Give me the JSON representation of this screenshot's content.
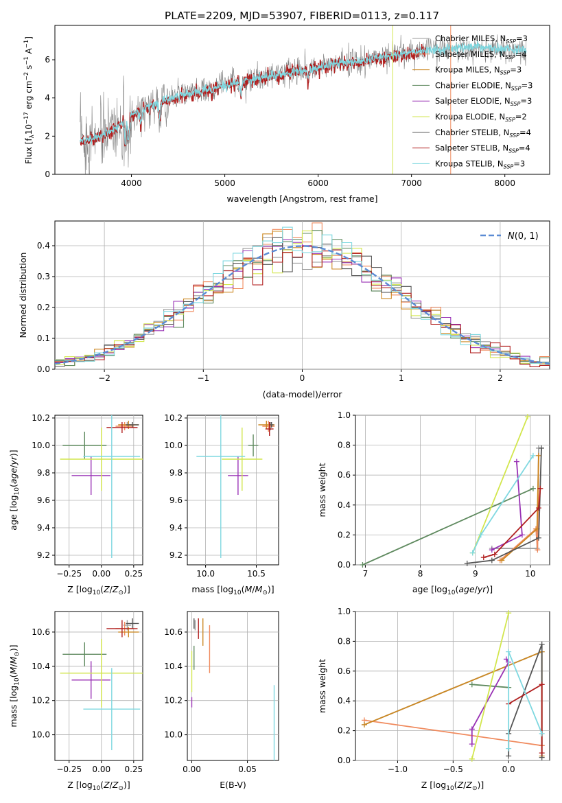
{
  "figure": {
    "title": "PLATE=2209, MJD=53907, FIBERID=0113, z=0.117"
  },
  "models": [
    {
      "name": "Chabrier MILES",
      "nssp": "3",
      "color": "#9a9a9a"
    },
    {
      "name": "Salpeter MILES",
      "nssp": "4",
      "color": "#f08a5d"
    },
    {
      "name": "Kroupa MILES",
      "nssp": "3",
      "color": "#cc8822"
    },
    {
      "name": "Chabrier ELODIE",
      "nssp": "3",
      "color": "#5f8a5f"
    },
    {
      "name": "Salpeter ELODIE",
      "nssp": "3",
      "color": "#9932b5"
    },
    {
      "name": "Kroupa ELODIE",
      "nssp": "2",
      "color": "#d2e64d"
    },
    {
      "name": "Chabrier STELIB",
      "nssp": "4",
      "color": "#555555"
    },
    {
      "name": "Salpeter STELIB",
      "nssp": "4",
      "color": "#b01e1e"
    },
    {
      "name": "Kroupa STELIB",
      "nssp": "3",
      "color": "#7fd8e0"
    }
  ],
  "chart_data": [
    {
      "id": "spectrum",
      "type": "line",
      "xlabel": "wavelength [Angstrom, rest frame]",
      "ylabel": "Flux [f_λ10^-17 erg cm^-2 s^-1 A^-1]",
      "xlim": [
        3180,
        8480
      ],
      "ylim": [
        0,
        7.8
      ],
      "xticks": [
        4000,
        5000,
        6000,
        7000,
        8000
      ],
      "yticks": [
        0,
        2,
        4,
        6
      ],
      "grid": false,
      "legend": "top-right",
      "continuum": [
        [
          3450,
          1.75
        ],
        [
          3600,
          1.9
        ],
        [
          3700,
          2.05
        ],
        [
          3800,
          2.4
        ],
        [
          3900,
          2.75
        ],
        [
          4000,
          3.1
        ],
        [
          4100,
          3.3
        ],
        [
          4200,
          3.55
        ],
        [
          4300,
          3.8
        ],
        [
          4500,
          4.1
        ],
        [
          4700,
          4.3
        ],
        [
          4900,
          4.55
        ],
        [
          5100,
          4.8
        ],
        [
          5300,
          5.0
        ],
        [
          5500,
          5.15
        ],
        [
          5700,
          5.35
        ],
        [
          5900,
          5.5
        ],
        [
          6100,
          5.7
        ],
        [
          6300,
          5.85
        ],
        [
          6500,
          5.95
        ],
        [
          6700,
          6.15
        ],
        [
          6900,
          6.3
        ],
        [
          7100,
          6.45
        ],
        [
          7300,
          6.55
        ],
        [
          7600,
          6.65
        ],
        [
          7900,
          6.6
        ],
        [
          8200,
          6.5
        ]
      ],
      "data_range": [
        3450,
        8230
      ],
      "data_series": "data",
      "model_series": "Kroupa STELIB",
      "absorption_features": [
        {
          "x": 3933,
          "depth": 1.4
        },
        {
          "x": 3968,
          "depth": 1.3
        },
        {
          "x": 4102,
          "depth": 0.6
        },
        {
          "x": 4304,
          "depth": 0.8
        },
        {
          "x": 4861,
          "depth": 0.4
        },
        {
          "x": 5175,
          "depth": 0.7
        },
        {
          "x": 5893,
          "depth": 0.5
        }
      ],
      "masked_spikes": [
        {
          "x": 6800,
          "color": "#d2e64d"
        },
        {
          "x": 7420,
          "color": "#f08a5d"
        }
      ]
    },
    {
      "id": "residuals",
      "type": "bar",
      "xlabel": "(data-model)/error",
      "ylabel": "Normed distribution",
      "xlim": [
        -2.5,
        2.5
      ],
      "ylim": [
        0,
        0.48
      ],
      "xticks": [
        -2,
        -1,
        0,
        1,
        2
      ],
      "yticks": [
        0.0,
        0.1,
        0.2,
        0.3,
        0.4
      ],
      "grid": true,
      "legend": "top-right",
      "legend_label": "N(0,1)",
      "bin_edges_start": -2.5,
      "bin_width": 0.1,
      "reference_curve": {
        "name": "N(0,1)",
        "mean": 0,
        "sigma": 1,
        "color": "#5b8bd4"
      }
    },
    {
      "id": "age-vs-Z",
      "type": "scatter",
      "xlabel": "Z [log10(Z/Z⊙)]",
      "ylabel": "age [log10(age/yr)]",
      "xlim": [
        -0.36,
        0.32
      ],
      "ylim": [
        9.13,
        10.22
      ],
      "xticks": [
        -0.25,
        0.0,
        0.25
      ],
      "xticklabels": [
        "−0.25",
        "0.00",
        "0.25"
      ],
      "yticks": [
        9.2,
        9.4,
        9.6,
        9.8,
        10.0,
        10.2
      ],
      "grid": true,
      "points": [
        {
          "model": "Chabrier MILES",
          "x": 0.2,
          "y": 10.15,
          "xerr": 0.03,
          "yerr": 0.02
        },
        {
          "model": "Salpeter MILES",
          "x": 0.18,
          "y": 10.14,
          "xerr": 0.07,
          "yerr": 0.03
        },
        {
          "model": "Kroupa MILES",
          "x": 0.21,
          "y": 10.15,
          "xerr": 0.08,
          "yerr": 0.03
        },
        {
          "model": "Chabrier ELODIE",
          "x": -0.13,
          "y": 10.0,
          "xerr": 0.17,
          "yerr": 0.1
        },
        {
          "model": "Salpeter ELODIE",
          "x": -0.08,
          "y": 9.78,
          "xerr": 0.15,
          "yerr": 0.14
        },
        {
          "model": "Kroupa ELODIE",
          "x": 0.0,
          "y": 9.9,
          "xerr": 0.32,
          "yerr": 0.23
        },
        {
          "model": "Chabrier STELIB",
          "x": 0.24,
          "y": 10.15,
          "xerr": 0.05,
          "yerr": 0.02
        },
        {
          "model": "Salpeter STELIB",
          "x": 0.16,
          "y": 10.13,
          "xerr": 0.12,
          "yerr": 0.04
        },
        {
          "model": "Kroupa STELIB",
          "x": 0.08,
          "y": 9.92,
          "xerr": 0.22,
          "yerr": 0.74
        }
      ]
    },
    {
      "id": "age-vs-mass",
      "type": "scatter",
      "xlabel": "mass [log10(M/M⊙)]",
      "ylabel": "",
      "xlim": [
        9.82,
        10.72
      ],
      "ylim": [
        9.13,
        10.22
      ],
      "xticks": [
        10.0,
        10.5
      ],
      "xticklabels": [
        "10.0",
        "10.5"
      ],
      "yticks": [
        9.2,
        9.4,
        9.6,
        9.8,
        10.0,
        10.2
      ],
      "grid": true,
      "points": [
        {
          "model": "Chabrier MILES",
          "x": 10.64,
          "y": 10.14,
          "xerr": 0.04,
          "yerr": 0.03
        },
        {
          "model": "Salpeter MILES",
          "x": 10.62,
          "y": 10.14,
          "xerr": 0.06,
          "yerr": 0.04
        },
        {
          "model": "Kroupa MILES",
          "x": 10.6,
          "y": 10.15,
          "xerr": 0.08,
          "yerr": 0.03
        },
        {
          "model": "Chabrier ELODIE",
          "x": 10.47,
          "y": 10.0,
          "xerr": 0.05,
          "yerr": 0.08
        },
        {
          "model": "Salpeter ELODIE",
          "x": 10.32,
          "y": 9.78,
          "xerr": 0.1,
          "yerr": 0.14
        },
        {
          "model": "Kroupa ELODIE",
          "x": 10.36,
          "y": 9.9,
          "xerr": 0.2,
          "yerr": 0.23
        },
        {
          "model": "Chabrier STELIB",
          "x": 10.65,
          "y": 10.15,
          "xerr": 0.02,
          "yerr": 0.02
        },
        {
          "model": "Salpeter STELIB",
          "x": 10.63,
          "y": 10.12,
          "xerr": 0.04,
          "yerr": 0.05
        },
        {
          "model": "Kroupa STELIB",
          "x": 10.15,
          "y": 9.92,
          "xerr": 0.24,
          "yerr": 0.74
        }
      ]
    },
    {
      "id": "weight-vs-age",
      "type": "line",
      "xlabel": "age [log10(age/yr)]",
      "ylabel": "mass weight",
      "xlim": [
        6.82,
        10.35
      ],
      "ylim": [
        0,
        1.0
      ],
      "xticks": [
        7,
        8,
        9,
        10
      ],
      "yticks": [
        0.0,
        0.2,
        0.4,
        0.6,
        0.8,
        1.0
      ],
      "grid": true,
      "series": [
        {
          "model": "Chabrier MILES",
          "x": [
            9.3,
            10.12,
            10.15
          ],
          "y": [
            0.11,
            0.11,
            0.78
          ]
        },
        {
          "model": "Salpeter MILES",
          "x": [
            9.45,
            10.1,
            10.13,
            10.15
          ],
          "y": [
            0.03,
            0.24,
            0.1,
            0.73
          ]
        },
        {
          "model": "Kroupa MILES",
          "x": [
            9.48,
            10.12,
            10.15
          ],
          "y": [
            0.03,
            0.24,
            0.73
          ]
        },
        {
          "model": "Chabrier ELODIE",
          "x": [
            6.95,
            10.05
          ],
          "y": [
            0.0,
            0.51
          ]
        },
        {
          "model": "Salpeter ELODIE",
          "x": [
            9.3,
            9.85,
            9.75
          ],
          "y": [
            0.1,
            0.2,
            0.69
          ]
        },
        {
          "model": "Kroupa ELODIE",
          "x": [
            8.95,
            9.95
          ],
          "y": [
            0.08,
            0.99
          ]
        },
        {
          "model": "Chabrier STELIB",
          "x": [
            8.85,
            9.3,
            10.15,
            10.2
          ],
          "y": [
            0.01,
            0.03,
            0.18,
            0.78
          ]
        },
        {
          "model": "Salpeter STELIB",
          "x": [
            9.15,
            9.35,
            10.15,
            10.18
          ],
          "y": [
            0.05,
            0.07,
            0.38,
            0.51
          ]
        },
        {
          "model": "Kroupa STELIB",
          "x": [
            8.95,
            9.1,
            10.05
          ],
          "y": [
            0.08,
            0.2,
            0.73
          ]
        }
      ]
    },
    {
      "id": "mass-vs-Z",
      "type": "scatter",
      "xlabel": "Z [log10(Z/Z⊙)]",
      "ylabel": "mass [log10(M/M⊙)]",
      "xlim": [
        -0.36,
        0.32
      ],
      "ylim": [
        9.85,
        10.72
      ],
      "xticks": [
        -0.25,
        0.0,
        0.25
      ],
      "xticklabels": [
        "−0.25",
        "0.00",
        "0.25"
      ],
      "yticks": [
        10.0,
        10.2,
        10.4,
        10.6
      ],
      "grid": true,
      "points": [
        {
          "model": "Chabrier MILES",
          "x": 0.2,
          "y": 10.64,
          "xerr": 0.03,
          "yerr": 0.03
        },
        {
          "model": "Salpeter MILES",
          "x": 0.18,
          "y": 10.62,
          "xerr": 0.07,
          "yerr": 0.04
        },
        {
          "model": "Kroupa MILES",
          "x": 0.21,
          "y": 10.6,
          "xerr": 0.08,
          "yerr": 0.03
        },
        {
          "model": "Chabrier ELODIE",
          "x": -0.13,
          "y": 10.47,
          "xerr": 0.17,
          "yerr": 0.07
        },
        {
          "model": "Salpeter ELODIE",
          "x": -0.08,
          "y": 10.32,
          "xerr": 0.15,
          "yerr": 0.11
        },
        {
          "model": "Kroupa ELODIE",
          "x": 0.0,
          "y": 10.36,
          "xerr": 0.32,
          "yerr": 0.2
        },
        {
          "model": "Chabrier STELIB",
          "x": 0.24,
          "y": 10.65,
          "xerr": 0.05,
          "yerr": 0.03
        },
        {
          "model": "Salpeter STELIB",
          "x": 0.16,
          "y": 10.62,
          "xerr": 0.12,
          "yerr": 0.05
        },
        {
          "model": "Kroupa STELIB",
          "x": 0.08,
          "y": 10.15,
          "xerr": 0.22,
          "yerr": 0.24
        }
      ]
    },
    {
      "id": "mass-vs-ebv",
      "type": "scatter",
      "xlabel": "E(B-V)",
      "ylabel": "",
      "xlim": [
        -0.004,
        0.078
      ],
      "ylim": [
        9.85,
        10.72
      ],
      "xticks": [
        0.0,
        0.05
      ],
      "xticklabels": [
        "0.00",
        "0.05"
      ],
      "yticks": [
        10.0,
        10.2,
        10.4,
        10.6
      ],
      "grid": true,
      "points": [
        {
          "model": "Chabrier MILES",
          "x": 0.003,
          "y": 10.64,
          "xerr": 0,
          "yerr": 0.03
        },
        {
          "model": "Salpeter MILES",
          "x": 0.016,
          "y": 10.5,
          "xerr": 0,
          "yerr": 0.14
        },
        {
          "model": "Kroupa MILES",
          "x": 0.01,
          "y": 10.6,
          "xerr": 0,
          "yerr": 0.08
        },
        {
          "model": "Chabrier ELODIE",
          "x": 0.002,
          "y": 10.45,
          "xerr": 0,
          "yerr": 0.07
        },
        {
          "model": "Salpeter ELODIE",
          "x": 0.0,
          "y": 10.19,
          "xerr": 0,
          "yerr": 0.03
        },
        {
          "model": "Kroupa ELODIE",
          "x": 0.0,
          "y": 10.37,
          "xerr": 0,
          "yerr": 0.12
        },
        {
          "model": "Chabrier STELIB",
          "x": 0.002,
          "y": 10.65,
          "xerr": 0,
          "yerr": 0.03
        },
        {
          "model": "Salpeter STELIB",
          "x": 0.006,
          "y": 10.62,
          "xerr": 0,
          "yerr": 0.06
        },
        {
          "model": "Kroupa STELIB",
          "x": 0.074,
          "y": 10.07,
          "xerr": 0,
          "yerr": 0.22
        }
      ]
    },
    {
      "id": "weight-vs-Z",
      "type": "line",
      "xlabel": "Z [log10(Z/Z⊙)]",
      "ylabel": "mass weight",
      "xlim": [
        -1.38,
        0.37
      ],
      "ylim": [
        0,
        1.0
      ],
      "xticks": [
        -1.0,
        -0.5,
        0.0
      ],
      "xticklabels": [
        "−1.0",
        "−0.5",
        "0.0"
      ],
      "yticks": [
        0.0,
        0.2,
        0.4,
        0.6,
        0.8,
        1.0
      ],
      "grid": true,
      "series": [
        {
          "model": "Chabrier MILES",
          "x": [
            -1.3,
            0.3,
            0.3
          ],
          "y": [
            0.24,
            0.73,
            0.1
          ]
        },
        {
          "model": "Salpeter MILES",
          "x": [
            -1.3,
            0.3
          ],
          "y": [
            0.27,
            0.1
          ]
        },
        {
          "model": "Kroupa MILES",
          "x": [
            -1.3,
            0.3,
            0.3
          ],
          "y": [
            0.24,
            0.73,
            0.03
          ]
        },
        {
          "model": "Chabrier ELODIE",
          "x": [
            -0.33,
            0.0
          ],
          "y": [
            0.51,
            0.49
          ]
        },
        {
          "model": "Salpeter ELODIE",
          "x": [
            -0.33,
            -0.33,
            0.0,
            -0.02
          ],
          "y": [
            0.11,
            0.21,
            0.66,
            0.68
          ]
        },
        {
          "model": "Kroupa ELODIE",
          "x": [
            -0.33,
            0.0
          ],
          "y": [
            0.01,
            0.99
          ]
        },
        {
          "model": "Chabrier STELIB",
          "x": [
            0.0,
            0.0,
            0.3,
            0.3
          ],
          "y": [
            0.03,
            0.18,
            0.78,
            0.02
          ]
        },
        {
          "model": "Salpeter STELIB",
          "x": [
            0.0,
            0.3,
            0.3
          ],
          "y": [
            0.38,
            0.51,
            0.05
          ]
        },
        {
          "model": "Kroupa STELIB",
          "x": [
            0.0,
            0.0,
            0.3
          ],
          "y": [
            0.08,
            0.73,
            0.18
          ]
        }
      ]
    }
  ]
}
